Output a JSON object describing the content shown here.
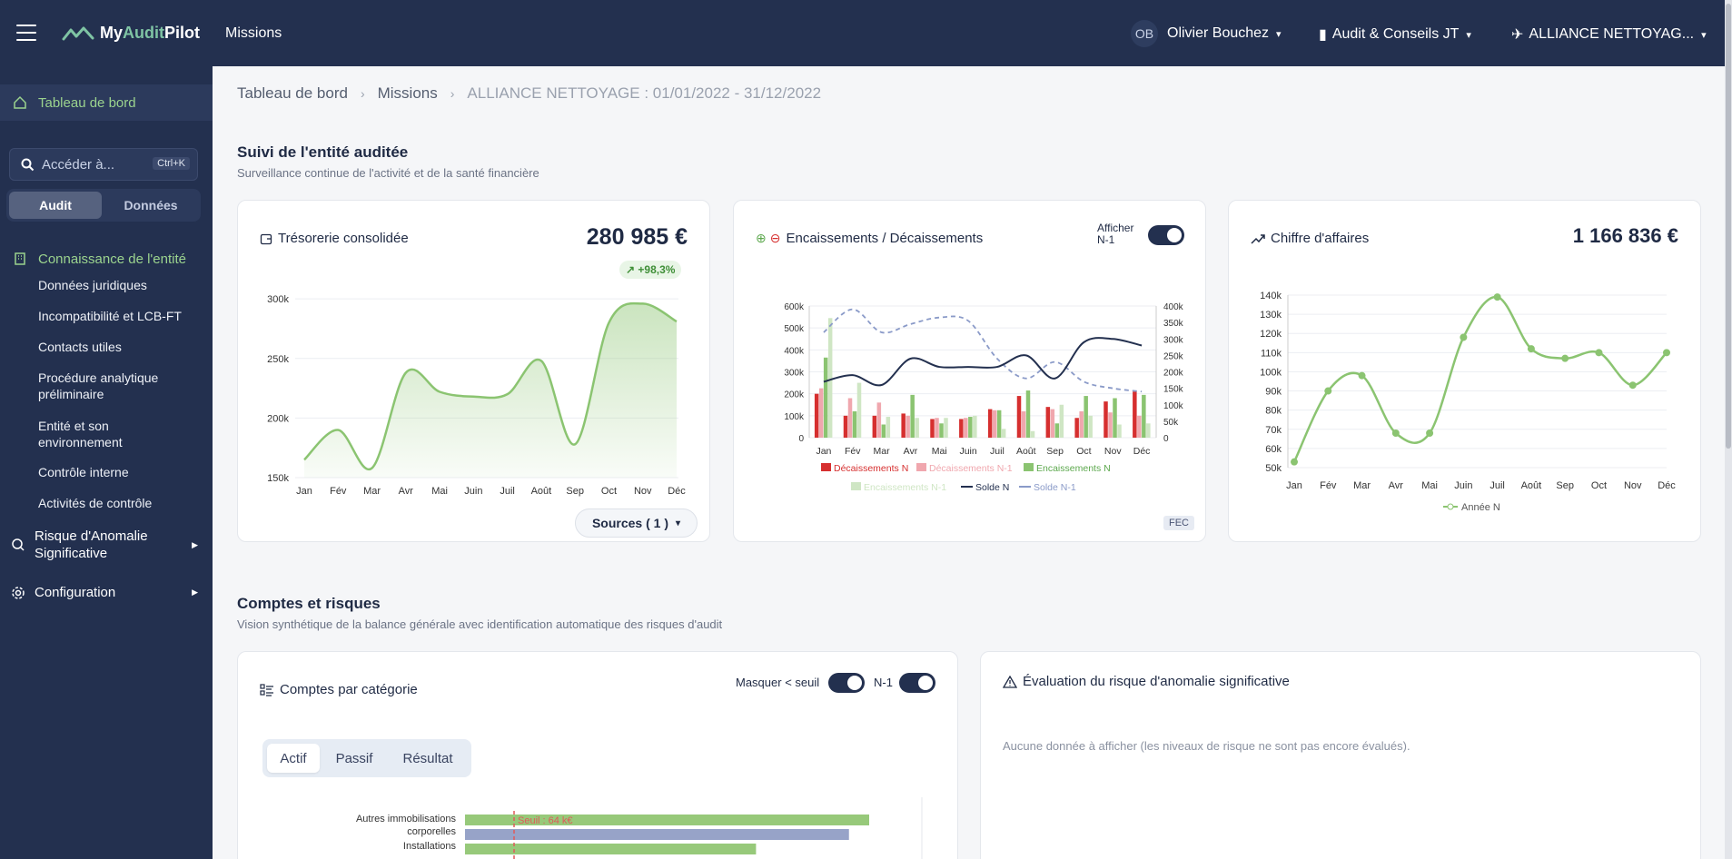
{
  "topbar": {
    "brand_a": "My",
    "brand_b": "Audit",
    "brand_c": "Pilot",
    "section": "Missions",
    "user_initials": "OB",
    "user_name": "Olivier Bouchez",
    "org": "Audit & Conseils JT",
    "client": "ALLIANCE NETTOYAG..."
  },
  "sidebar": {
    "home": "Tableau de bord",
    "search_placeholder": "Accéder à...",
    "shortcut": "Ctrl+K",
    "seg_audit": "Audit",
    "seg_data": "Données",
    "group": "Connaissance de l'entité",
    "sub_items": [
      "Données juridiques",
      "Incompatibilité et LCB-FT",
      "Contacts utiles",
      "Procédure analytique préliminaire",
      "Entité et son environnement",
      "Contrôle interne",
      "Activités de contrôle"
    ],
    "rams": "Risque d'Anomalie Significative",
    "config": "Configuration"
  },
  "breadcrumb": [
    "Tableau de bord",
    "Missions",
    "ALLIANCE NETTOYAGE : 01/01/2022 - 31/12/2022"
  ],
  "section1": {
    "title": "Suivi de l'entité auditée",
    "subtitle": "Surveillance continue de l'activité et de la santé financière"
  },
  "section2": {
    "title": "Comptes et risques",
    "subtitle": "Vision synthétique de la balance générale avec identification automatique des risques d'audit"
  },
  "tresorerie": {
    "title": "Trésorerie consolidée",
    "value": "280 985 €",
    "delta": "+98,3%",
    "sources": "Sources ( 1 )"
  },
  "flux": {
    "title": "Encaissements / Décaissements",
    "toggle_label_1": "Afficher",
    "toggle_label_2": "N-1",
    "fec": "FEC"
  },
  "ca": {
    "title": "Chiffre d'affaires",
    "value": "1 166 836 €"
  },
  "comptes": {
    "title": "Comptes par catégorie",
    "mask_label": "Masquer < seuil",
    "n1_label": "N-1",
    "tabs": [
      "Actif",
      "Passif",
      "Résultat"
    ]
  },
  "risque": {
    "title": "Évaluation du risque d'anomalie significative",
    "empty": "Aucune donnée à afficher (les niveaux de risque ne sont pas encore évalués)."
  },
  "colors": {
    "navy": "#23304f",
    "green": "#8bc471",
    "red": "#d62f2f",
    "pink": "#f0a7ae",
    "lightgreen": "#cfe6c4",
    "bar_blue": "#97a3c8"
  },
  "chart_data": [
    {
      "type": "area",
      "x": [
        "Jan",
        "Fév",
        "Mar",
        "Avr",
        "Mai",
        "Juin",
        "Juil",
        "Août",
        "Sep",
        "Oct",
        "Nov",
        "Déc"
      ],
      "series": [
        {
          "values": [
            165000,
            190000,
            158000,
            238000,
            222000,
            218000,
            220000,
            248000,
            178000,
            280000,
            296000,
            281000
          ]
        }
      ],
      "yticks": [
        "150k",
        "200k",
        "250k",
        "300k"
      ],
      "ylim": [
        150000,
        310000
      ]
    },
    {
      "type": "bar",
      "categories": [
        "Jan",
        "Fév",
        "Mar",
        "Avr",
        "Mai",
        "Juin",
        "Juil",
        "Août",
        "Sep",
        "Oct",
        "Nov",
        "Déc"
      ],
      "series": [
        {
          "name": "Décaissements N",
          "values": [
            200000,
            100000,
            100000,
            110000,
            85000,
            85000,
            130000,
            190000,
            140000,
            90000,
            165000,
            210000
          ]
        },
        {
          "name": "Décaissements N-1",
          "values": [
            225000,
            180000,
            160000,
            100000,
            90000,
            90000,
            125000,
            120000,
            130000,
            120000,
            115000,
            100000
          ]
        },
        {
          "name": "Encaissements N",
          "values": [
            365000,
            120000,
            60000,
            195000,
            65000,
            95000,
            125000,
            215000,
            65000,
            190000,
            180000,
            195000
          ]
        },
        {
          "name": "Encaissements N-1",
          "values": [
            545000,
            250000,
            95000,
            90000,
            90000,
            100000,
            40000,
            30000,
            150000,
            100000,
            60000,
            65000
          ]
        }
      ],
      "lines": [
        {
          "name": "Solde N",
          "values": [
            170000,
            190000,
            160000,
            240000,
            215000,
            215000,
            215000,
            250000,
            180000,
            290000,
            300000,
            280000
          ]
        },
        {
          "name": "Solde N-1",
          "values": [
            320000,
            390000,
            320000,
            345000,
            365000,
            355000,
            240000,
            180000,
            230000,
            170000,
            150000,
            140000
          ]
        }
      ],
      "y_left_ticks": [
        "0",
        "100k",
        "200k",
        "300k",
        "400k",
        "500k",
        "600k"
      ],
      "y_right_ticks": [
        "0",
        "50k",
        "100k",
        "150k",
        "200k",
        "250k",
        "300k",
        "350k",
        "400k"
      ],
      "ylim_left": [
        0,
        600000
      ],
      "ylim_right": [
        0,
        400000
      ]
    },
    {
      "type": "line",
      "x": [
        "Jan",
        "Fév",
        "Mar",
        "Avr",
        "Mai",
        "Juin",
        "Juil",
        "Août",
        "Sep",
        "Oct",
        "Nov",
        "Déc"
      ],
      "series": [
        {
          "name": "Année N",
          "values": [
            53000,
            90000,
            98000,
            68000,
            68000,
            118000,
            139000,
            112000,
            107000,
            110000,
            93000,
            110000
          ]
        }
      ],
      "yticks": [
        "50k",
        "60k",
        "70k",
        "80k",
        "90k",
        "100k",
        "110k",
        "120k",
        "130k",
        "140k"
      ],
      "ylim": [
        50000,
        140000
      ]
    },
    {
      "type": "bar",
      "categories": [
        "Autres immobilisations corporelles",
        "Installations"
      ],
      "series": [
        {
          "name": "N",
          "values": [
            1,
            0.72
          ]
        },
        {
          "name": "N-1",
          "values": [
            0.95,
            0
          ]
        }
      ],
      "threshold_label": "Seuil : 64 k€"
    }
  ]
}
